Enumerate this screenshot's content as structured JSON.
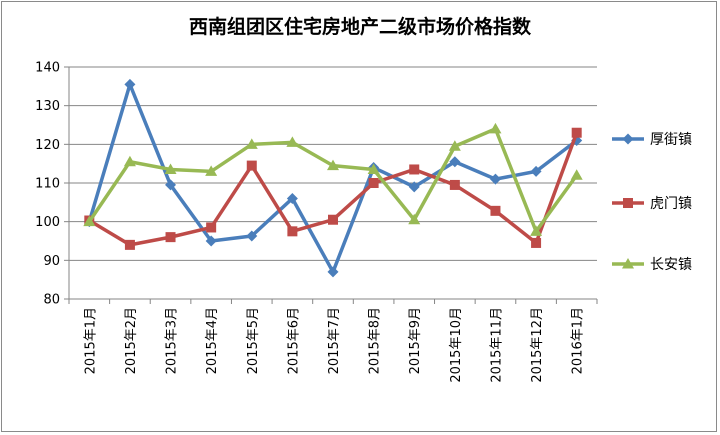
{
  "chart_data": {
    "type": "line",
    "title": "西南组团区住宅房地产二级市场价格指数",
    "xlabel": "",
    "ylabel": "",
    "ylim": [
      80,
      140
    ],
    "y_ticks": [
      "80",
      "90",
      "100",
      "110",
      "120",
      "130",
      "140"
    ],
    "grid": "horizontal",
    "legend_position": "right",
    "categories": [
      "2015年1月",
      "2015年2月",
      "2015年3月",
      "2015年4月",
      "2015年5月",
      "2015年6月",
      "2015年7月",
      "2015年8月",
      "2015年9月",
      "2015年10月",
      "2015年11月",
      "2015年12月",
      "2016年1月"
    ],
    "series": [
      {
        "name": "厚街镇",
        "color": "#4a7ebb",
        "marker": "diamond",
        "values": [
          100,
          135.5,
          109.5,
          95,
          96.3,
          106,
          87,
          114,
          109,
          115.5,
          111,
          113,
          121
        ]
      },
      {
        "name": "虎门镇",
        "color": "#be4b48",
        "marker": "square",
        "values": [
          100.3,
          94,
          96,
          98.5,
          114.5,
          97.5,
          100.5,
          110,
          113.5,
          109.5,
          102.8,
          94.5,
          123
        ]
      },
      {
        "name": "长安镇",
        "color": "#98b954",
        "marker": "triangle",
        "values": [
          100,
          115.5,
          113.5,
          113,
          120,
          120.5,
          114.5,
          113.5,
          100.5,
          119.5,
          124,
          97.5,
          112
        ]
      }
    ]
  }
}
